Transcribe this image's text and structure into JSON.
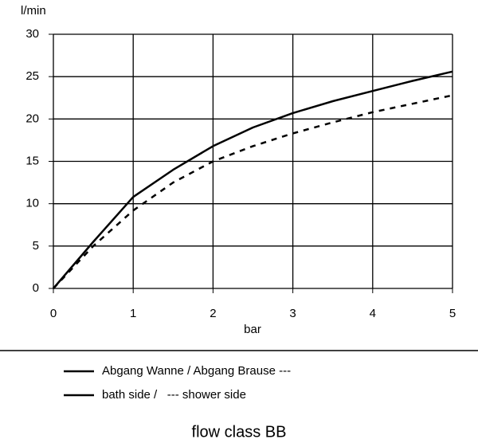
{
  "chart_data": {
    "type": "line",
    "y_label": "l/min",
    "x_label": "bar",
    "x": [
      0,
      0.5,
      1,
      1.5,
      2,
      2.5,
      3,
      3.5,
      4,
      4.5,
      5
    ],
    "series": [
      {
        "color": "#000000",
        "dash": false,
        "values": [
          0,
          5.5,
          10.8,
          14,
          16.8,
          19,
          20.7,
          22.1,
          23.3,
          24.5,
          25.6
        ]
      },
      {
        "color": "#000000",
        "dash": true,
        "values": [
          0,
          5,
          9.2,
          12.5,
          15,
          16.8,
          18.3,
          19.6,
          20.8,
          21.8,
          22.8
        ]
      }
    ],
    "xlim": [
      0,
      5
    ],
    "xticks": [
      0,
      1,
      2,
      3,
      4,
      5
    ],
    "ylim": [
      0,
      30
    ],
    "yticks": [
      0,
      5,
      10,
      15,
      20,
      25,
      30
    ],
    "grid": true,
    "legend": [
      "Abgang Wanne / Abgang Brause ---",
      "bath side /   --- shower side"
    ],
    "caption": "flow class BB"
  }
}
